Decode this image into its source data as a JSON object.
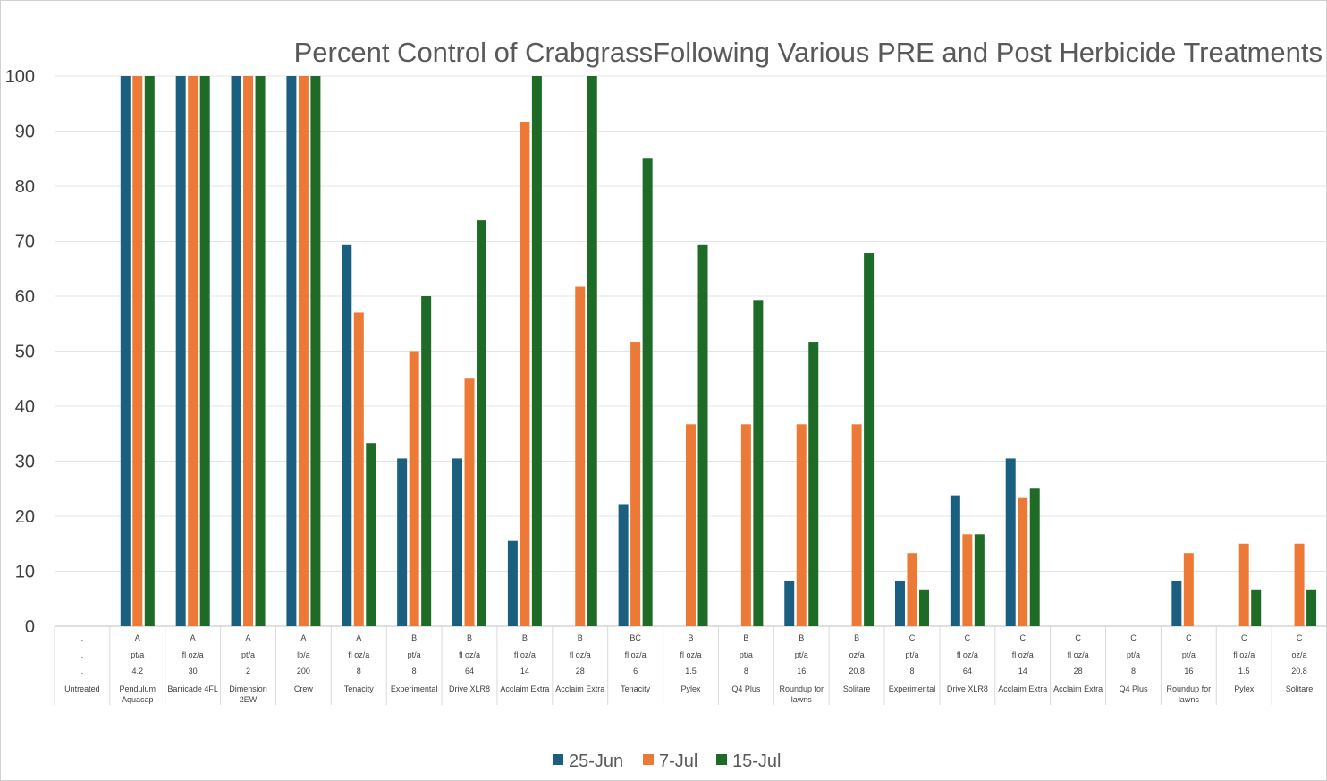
{
  "chart_data": {
    "type": "bar",
    "title": "Percent Control of CrabgrassFollowing Various PRE and Post Herbicide Treatments",
    "xlabel": "",
    "ylabel": "",
    "ylim": [
      0,
      100
    ],
    "yticks": [
      0,
      10,
      20,
      30,
      40,
      50,
      60,
      70,
      80,
      90,
      100
    ],
    "grid": true,
    "legend_position": "bottom",
    "category_rows": [
      {
        "group": ".",
        "unit": ".",
        "rate": ".",
        "name": [
          "Untreated"
        ]
      },
      {
        "group": "A",
        "unit": "pt/a",
        "rate": "4.2",
        "name": [
          "Pendulum",
          "Aquacap"
        ]
      },
      {
        "group": "A",
        "unit": "fl oz/a",
        "rate": "30",
        "name": [
          "Barricade 4FL"
        ]
      },
      {
        "group": "A",
        "unit": "pt/a",
        "rate": "2",
        "name": [
          "Dimension",
          "2EW"
        ]
      },
      {
        "group": "A",
        "unit": "lb/a",
        "rate": "200",
        "name": [
          "Crew"
        ]
      },
      {
        "group": "A",
        "unit": "fl oz/a",
        "rate": "8",
        "name": [
          "Tenacity"
        ]
      },
      {
        "group": "B",
        "unit": "pt/a",
        "rate": "8",
        "name": [
          "Experimental"
        ]
      },
      {
        "group": "B",
        "unit": "fl oz/a",
        "rate": "64",
        "name": [
          "Drive XLR8"
        ]
      },
      {
        "group": "B",
        "unit": "fl oz/a",
        "rate": "14",
        "name": [
          "Acclaim Extra"
        ]
      },
      {
        "group": "B",
        "unit": "fl oz/a",
        "rate": "28",
        "name": [
          "Acclaim Extra"
        ]
      },
      {
        "group": "BC",
        "unit": "fl oz/a",
        "rate": "6",
        "name": [
          "Tenacity"
        ]
      },
      {
        "group": "B",
        "unit": "fl oz/a",
        "rate": "1.5",
        "name": [
          "Pylex"
        ]
      },
      {
        "group": "B",
        "unit": "pt/a",
        "rate": "8",
        "name": [
          "Q4 Plus"
        ]
      },
      {
        "group": "B",
        "unit": "pt/a",
        "rate": "16",
        "name": [
          "Roundup for",
          "lawns"
        ]
      },
      {
        "group": "B",
        "unit": "oz/a",
        "rate": "20.8",
        "name": [
          "Solitare"
        ]
      },
      {
        "group": "C",
        "unit": "pt/a",
        "rate": "8",
        "name": [
          "Experimental"
        ]
      },
      {
        "group": "C",
        "unit": "fl oz/a",
        "rate": "64",
        "name": [
          "Drive XLR8"
        ]
      },
      {
        "group": "C",
        "unit": "fl oz/a",
        "rate": "14",
        "name": [
          "Acclaim Extra"
        ]
      },
      {
        "group": "C",
        "unit": "fl oz/a",
        "rate": "28",
        "name": [
          "Acclaim Extra"
        ]
      },
      {
        "group": "C",
        "unit": "pt/a",
        "rate": "8",
        "name": [
          "Q4 Plus"
        ]
      },
      {
        "group": "C",
        "unit": "pt/a",
        "rate": "16",
        "name": [
          "Roundup for",
          "lawns"
        ]
      },
      {
        "group": "C",
        "unit": "fl oz/a",
        "rate": "1.5",
        "name": [
          "Pylex"
        ]
      },
      {
        "group": "C",
        "unit": "oz/a",
        "rate": "20.8",
        "name": [
          "Solitare"
        ]
      }
    ],
    "series": [
      {
        "name": "25-Jun",
        "color": "#1b5f80",
        "values": [
          0,
          100,
          100,
          100,
          100,
          69.3,
          30.5,
          30.5,
          15.5,
          0,
          22.2,
          0,
          0,
          8.3,
          0,
          8.3,
          23.8,
          30.5,
          0,
          0,
          8.3,
          0,
          0
        ]
      },
      {
        "name": "7-Jul",
        "color": "#ec7936",
        "values": [
          0,
          100,
          100,
          100,
          100,
          57,
          50,
          45,
          91.7,
          61.7,
          51.7,
          36.7,
          36.7,
          36.7,
          36.7,
          13.3,
          16.7,
          23.3,
          0,
          0,
          13.3,
          15,
          15
        ]
      },
      {
        "name": "15-Jul",
        "color": "#1e6b27",
        "values": [
          0,
          100,
          100,
          100,
          100,
          33.3,
          60,
          73.8,
          100,
          100,
          85,
          69.3,
          59.3,
          51.7,
          67.8,
          6.7,
          16.7,
          25,
          0,
          0,
          0,
          6.7,
          6.7
        ]
      }
    ]
  }
}
